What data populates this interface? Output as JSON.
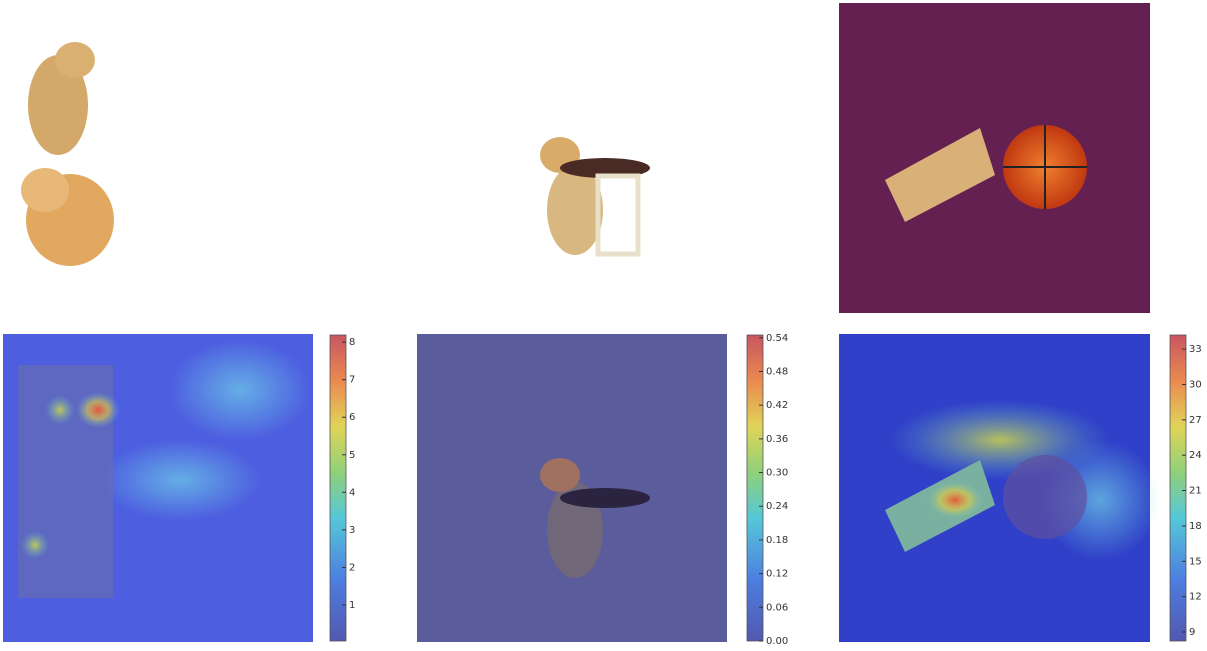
{
  "panels": [
    {
      "colorbar": {
        "lim": [
          0.04,
          8.19
        ],
        "ticks": [
          1,
          2,
          3,
          4,
          5,
          6,
          7,
          8
        ]
      }
    },
    {
      "colorbar": {
        "lim": [
          0,
          0.545
        ],
        "ticks": [
          {
            "value": 0,
            "label": "0.00"
          },
          0.06,
          0.12,
          0.18,
          0.24,
          {
            "value": 0.3,
            "label": "0.30"
          },
          0.36,
          0.42,
          0.48,
          0.54
        ]
      }
    },
    {
      "colorbar": {
        "lim": [
          8.24,
          34.2
        ],
        "ticks": [
          9,
          12,
          15,
          18,
          21,
          24,
          27,
          30,
          33
        ]
      }
    }
  ]
}
